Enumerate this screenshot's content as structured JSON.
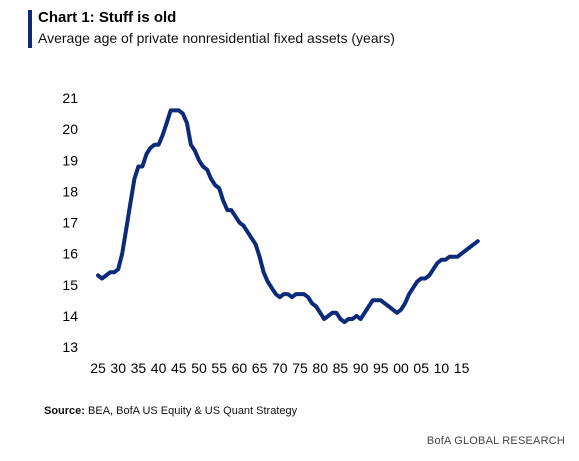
{
  "header": {
    "title": "Chart 1: Stuff is old",
    "subtitle": "Average age of private nonresidential fixed assets (years)"
  },
  "footer": {
    "source_label": "Source:",
    "source_text": " BEA, BofA US Equity & US Quant Strategy",
    "brand": "BofA GLOBAL RESEARCH"
  },
  "colors": {
    "line": "#0b2a7a",
    "accent": "#0b2a7a"
  },
  "chart_data": {
    "type": "line",
    "title": "Chart 1: Stuff is old",
    "subtitle": "Average age of private nonresidential fixed assets (years)",
    "xlabel": "",
    "ylabel": "",
    "ylim": [
      13,
      21
    ],
    "xlim": [
      1925,
      2019
    ],
    "grid": false,
    "x_ticks": [
      1925,
      1930,
      1935,
      1940,
      1945,
      1950,
      1955,
      1960,
      1965,
      1970,
      1975,
      1980,
      1985,
      1990,
      1995,
      2000,
      2005,
      2010,
      2015
    ],
    "x_tick_labels": [
      "25",
      "30",
      "35",
      "40",
      "45",
      "50",
      "55",
      "60",
      "65",
      "70",
      "75",
      "80",
      "85",
      "90",
      "95",
      "00",
      "05",
      "10",
      "15"
    ],
    "y_ticks": [
      13,
      14,
      15,
      16,
      17,
      18,
      19,
      20,
      21
    ],
    "series": [
      {
        "x": [
          1925,
          1926,
          1927,
          1928,
          1929,
          1930,
          1931,
          1932,
          1933,
          1934,
          1935,
          1936,
          1937,
          1938,
          1939,
          1940,
          1941,
          1942,
          1943,
          1944,
          1945,
          1946,
          1947,
          1948,
          1949,
          1950,
          1951,
          1952,
          1953,
          1954,
          1955,
          1956,
          1957,
          1958,
          1959,
          1960,
          1961,
          1962,
          1963,
          1964,
          1965,
          1966,
          1967,
          1968,
          1969,
          1970,
          1971,
          1972,
          1973,
          1974,
          1975,
          1976,
          1977,
          1978,
          1979,
          1980,
          1981,
          1982,
          1983,
          1984,
          1985,
          1986,
          1987,
          1988,
          1989,
          1990,
          1991,
          1992,
          1993,
          1994,
          1995,
          1996,
          1997,
          1998,
          1999,
          2000,
          2001,
          2002,
          2003,
          2004,
          2005,
          2006,
          2007,
          2008,
          2009,
          2010,
          2011,
          2012,
          2013,
          2014,
          2015,
          2016,
          2017,
          2018,
          2019
        ],
        "values": [
          15.3,
          15.2,
          15.3,
          15.4,
          15.4,
          15.5,
          16.0,
          16.8,
          17.6,
          18.4,
          18.8,
          18.8,
          19.2,
          19.4,
          19.5,
          19.5,
          19.8,
          20.2,
          20.6,
          20.6,
          20.6,
          20.5,
          20.2,
          19.5,
          19.3,
          19.0,
          18.8,
          18.7,
          18.4,
          18.2,
          18.1,
          17.7,
          17.4,
          17.4,
          17.2,
          17.0,
          16.9,
          16.7,
          16.5,
          16.3,
          15.9,
          15.4,
          15.1,
          14.9,
          14.7,
          14.6,
          14.7,
          14.7,
          14.6,
          14.7,
          14.7,
          14.7,
          14.6,
          14.4,
          14.3,
          14.1,
          13.9,
          14.0,
          14.1,
          14.1,
          13.9,
          13.8,
          13.9,
          13.9,
          14.0,
          13.9,
          14.1,
          14.3,
          14.5,
          14.5,
          14.5,
          14.4,
          14.3,
          14.2,
          14.1,
          14.2,
          14.4,
          14.7,
          14.9,
          15.1,
          15.2,
          15.2,
          15.3,
          15.5,
          15.7,
          15.8,
          15.8,
          15.9,
          15.9,
          15.9,
          16.0,
          16.1,
          16.2,
          16.3,
          16.4
        ]
      }
    ]
  }
}
